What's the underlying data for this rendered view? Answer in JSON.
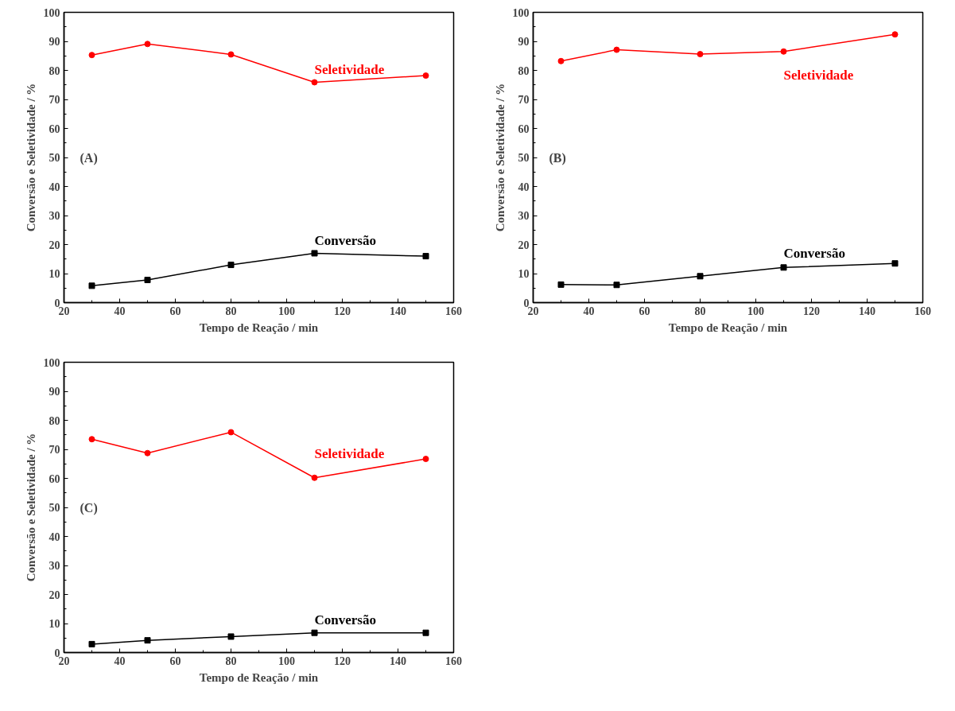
{
  "chart_data": [
    {
      "type": "line",
      "xlabel": "Tempo de Reação / min",
      "ylabel": "Conversão e Seletividade / %",
      "xlim": [
        20,
        160
      ],
      "ylim": [
        0,
        100
      ],
      "xticks": [
        20,
        40,
        60,
        80,
        100,
        120,
        140,
        160
      ],
      "yticks": [
        0,
        10,
        20,
        30,
        40,
        50,
        60,
        70,
        80,
        90,
        100
      ],
      "grid": false,
      "legend": false,
      "annotations": [
        "(A)"
      ],
      "x": [
        30,
        50,
        80,
        110,
        150
      ],
      "series": [
        {
          "name": "Seletividade",
          "color": "#ff0000",
          "marker": "circle",
          "values": [
            85.3,
            89.1,
            85.5,
            75.9,
            78.2
          ]
        },
        {
          "name": "Conversão",
          "color": "#000000",
          "marker": "square",
          "values": [
            5.8,
            7.8,
            13.0,
            17.0,
            16.0
          ]
        }
      ]
    },
    {
      "type": "line",
      "xlabel": "Tempo de Reação / min",
      "ylabel": "Conversão e Seletividade / %",
      "xlim": [
        20,
        160
      ],
      "ylim": [
        0,
        100
      ],
      "xticks": [
        20,
        40,
        60,
        80,
        100,
        120,
        140,
        160
      ],
      "yticks": [
        0,
        10,
        20,
        30,
        40,
        50,
        60,
        70,
        80,
        90,
        100
      ],
      "grid": false,
      "legend": false,
      "annotations": [
        "(B)"
      ],
      "x": [
        30,
        50,
        80,
        110,
        150
      ],
      "series": [
        {
          "name": "Seletividade",
          "color": "#ff0000",
          "marker": "circle",
          "values": [
            83.2,
            87.1,
            85.6,
            86.5,
            92.4
          ]
        },
        {
          "name": "Conversão",
          "color": "#000000",
          "marker": "square",
          "values": [
            6.2,
            6.1,
            9.1,
            12.1,
            13.5
          ]
        }
      ]
    },
    {
      "type": "line",
      "xlabel": "Tempo de Reação / min",
      "ylabel": "Conversão e Seletividade / %",
      "xlim": [
        20,
        160
      ],
      "ylim": [
        0,
        100
      ],
      "xticks": [
        20,
        40,
        60,
        80,
        100,
        120,
        140,
        160
      ],
      "yticks": [
        0,
        10,
        20,
        30,
        40,
        50,
        60,
        70,
        80,
        90,
        100
      ],
      "grid": false,
      "legend": false,
      "annotations": [
        "(C)"
      ],
      "x": [
        30,
        50,
        80,
        110,
        150
      ],
      "series": [
        {
          "name": "Seletividade",
          "color": "#ff0000",
          "marker": "circle",
          "values": [
            73.5,
            68.7,
            75.9,
            60.2,
            66.7
          ]
        },
        {
          "name": "Conversão",
          "color": "#000000",
          "marker": "square",
          "values": [
            2.9,
            4.2,
            5.5,
            6.8,
            6.8
          ]
        }
      ]
    }
  ]
}
